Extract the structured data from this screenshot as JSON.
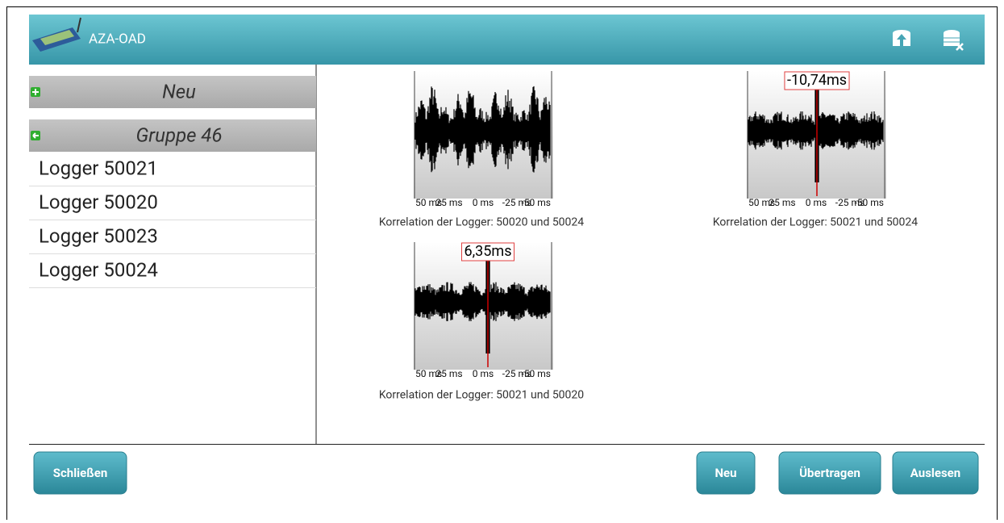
{
  "app": {
    "title": "AZA-OAD"
  },
  "sidebar": {
    "groups": [
      {
        "label": "Neu"
      },
      {
        "label": "Gruppe 46",
        "items": [
          "Logger 50021",
          "Logger 50020",
          "Logger 50023",
          "Logger 50024"
        ]
      }
    ]
  },
  "axis_labels": [
    "50 ms",
    "25 ms",
    "0 ms",
    "-25 ms",
    "-50 ms"
  ],
  "correlations": [
    {
      "caption": "Korrelation der Logger: 50020 und 50024"
    },
    {
      "caption": "Korrelation der Logger: 50021 und 50024",
      "delay": "-10,74ms"
    },
    {
      "caption": "Korrelation der Logger: 50021 und 50020",
      "delay": "6,35ms"
    }
  ],
  "buttons": {
    "close": "Schließen",
    "new": "Neu",
    "transfer": "Übertragen",
    "read": "Auslesen"
  }
}
